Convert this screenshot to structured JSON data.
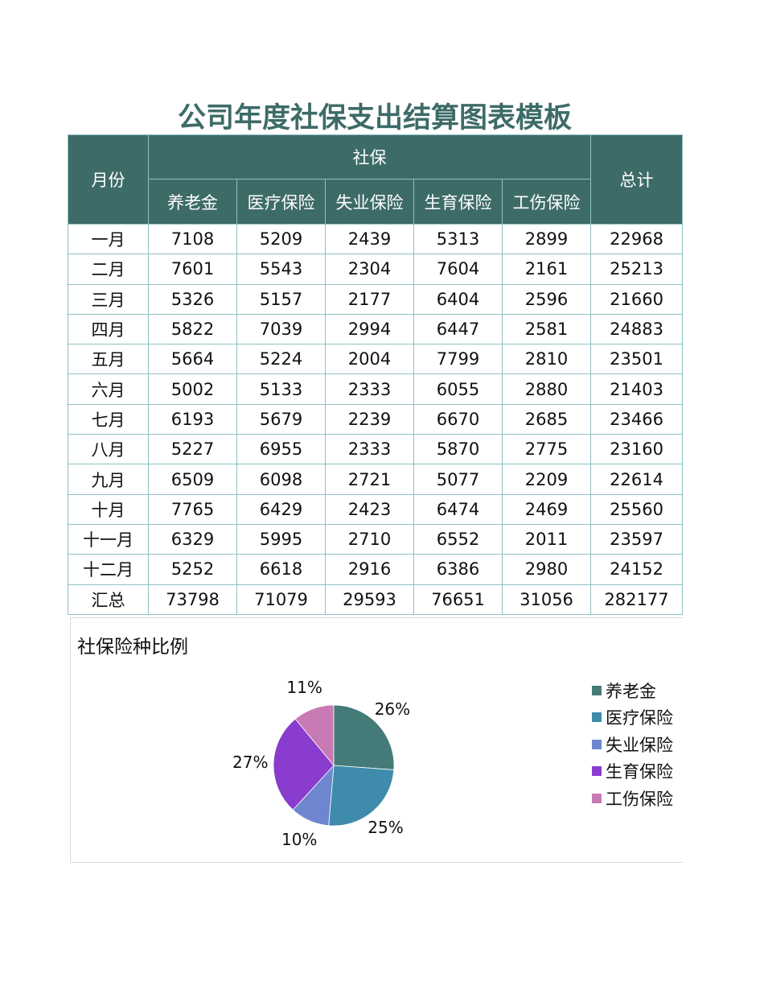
{
  "title": "公司年度社保支出结算图表模板",
  "table": {
    "header": {
      "month": "月份",
      "group": "社保",
      "total": "总计",
      "columns": [
        "养老金",
        "医疗保险",
        "失业保险",
        "生育保险",
        "工伤保险"
      ]
    },
    "rows": [
      {
        "month": "一月",
        "values": [
          "7108",
          "5209",
          "2439",
          "5313",
          "2899"
        ],
        "total": "22968"
      },
      {
        "month": "二月",
        "values": [
          "7601",
          "5543",
          "2304",
          "7604",
          "2161"
        ],
        "total": "25213"
      },
      {
        "month": "三月",
        "values": [
          "5326",
          "5157",
          "2177",
          "6404",
          "2596"
        ],
        "total": "21660"
      },
      {
        "month": "四月",
        "values": [
          "5822",
          "7039",
          "2994",
          "6447",
          "2581"
        ],
        "total": "24883"
      },
      {
        "month": "五月",
        "values": [
          "5664",
          "5224",
          "2004",
          "7799",
          "2810"
        ],
        "total": "23501"
      },
      {
        "month": "六月",
        "values": [
          "5002",
          "5133",
          "2333",
          "6055",
          "2880"
        ],
        "total": "21403"
      },
      {
        "month": "七月",
        "values": [
          "6193",
          "5679",
          "2239",
          "6670",
          "2685"
        ],
        "total": "23466"
      },
      {
        "month": "八月",
        "values": [
          "5227",
          "6955",
          "2333",
          "5870",
          "2775"
        ],
        "total": "23160"
      },
      {
        "month": "九月",
        "values": [
          "6509",
          "6098",
          "2721",
          "5077",
          "2209"
        ],
        "total": "22614"
      },
      {
        "month": "十月",
        "values": [
          "7765",
          "6429",
          "2423",
          "6474",
          "2469"
        ],
        "total": "25560"
      },
      {
        "month": "十一月",
        "values": [
          "6329",
          "5995",
          "2710",
          "6552",
          "2011"
        ],
        "total": "23597"
      },
      {
        "month": "十二月",
        "values": [
          "5252",
          "6618",
          "2916",
          "6386",
          "2980"
        ],
        "total": "24152"
      },
      {
        "month": "汇总",
        "values": [
          "73798",
          "71079",
          "29593",
          "76651",
          "31056"
        ],
        "total": "282177"
      }
    ]
  },
  "colors": {
    "header_bg": "#3d6b68",
    "title": "#3d6b68",
    "grid": "#8fc1c4"
  },
  "chart_data": {
    "type": "pie",
    "title": "社保险种比例",
    "categories": [
      "养老金",
      "医疗保险",
      "失业保险",
      "生育保险",
      "工伤保险"
    ],
    "values": [
      73798,
      71079,
      29593,
      76651,
      31056
    ],
    "labels": [
      "26%",
      "25%",
      "10%",
      "27%",
      "11%"
    ],
    "colors": [
      "#447a78",
      "#3e8bab",
      "#6e86cf",
      "#8a3ccf",
      "#c87ab5"
    ],
    "legend_position": "right"
  }
}
